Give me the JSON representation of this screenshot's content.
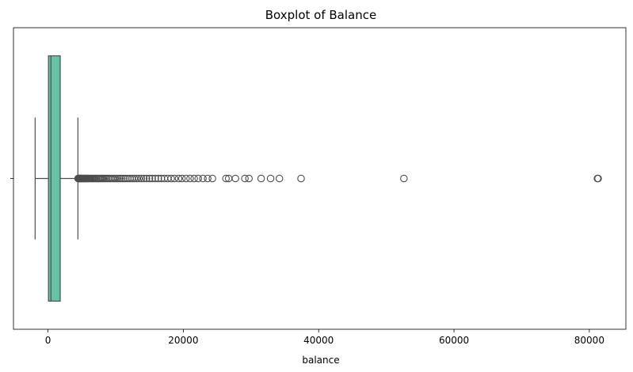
{
  "chart_data": {
    "type": "boxplot",
    "title": "Boxplot of Balance",
    "xlabel": "balance",
    "ylabel": "",
    "orientation": "horizontal",
    "xlim": [
      -5100,
      85400
    ],
    "x_ticks": [
      0,
      20000,
      40000,
      60000,
      80000
    ],
    "y_ticks": [
      ""
    ],
    "grid": false,
    "box_color": "#66c2a5",
    "line_color": "#4d4d4d",
    "stats": {
      "whisker_low": -1900,
      "q1": 70,
      "median": 440,
      "q3": 1810,
      "whisker_high": 4420
    },
    "outliers": [
      4450,
      4500,
      4560,
      4620,
      4680,
      4750,
      4820,
      4900,
      4980,
      5060,
      5150,
      5240,
      5330,
      5430,
      5530,
      5640,
      5750,
      5870,
      5990,
      6120,
      6250,
      6390,
      6530,
      6680,
      6830,
      6990,
      7150,
      7320,
      7500,
      7680,
      7870,
      8060,
      8260,
      8470,
      8680,
      8900,
      9130,
      9360,
      9600,
      9850,
      10100,
      10360,
      10630,
      10910,
      11200,
      11490,
      11790,
      12100,
      12420,
      12750,
      13090,
      13440,
      13800,
      14170,
      14550,
      15000,
      15400,
      15850,
      16300,
      16750,
      17200,
      17700,
      18200,
      18700,
      19300,
      19800,
      20400,
      21000,
      21600,
      22200,
      22900,
      23600,
      24300,
      26300,
      26700,
      27700,
      29100,
      29700,
      31500,
      32900,
      34200,
      37400,
      52600,
      81200,
      81300
    ]
  }
}
